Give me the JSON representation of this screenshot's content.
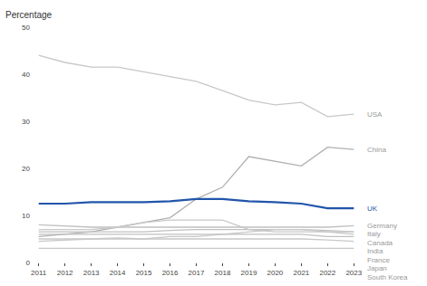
{
  "chart_data": {
    "type": "line",
    "y_label": "Percentage",
    "x": [
      2011,
      2012,
      2013,
      2014,
      2015,
      2016,
      2017,
      2018,
      2019,
      2020,
      2021,
      2022,
      2023
    ],
    "series": [
      {
        "name": "USA",
        "color": "#c8c8c8",
        "values": [
          44.0,
          42.5,
          41.5,
          41.5,
          40.5,
          39.5,
          38.5,
          36.5,
          34.5,
          33.5,
          34.0,
          31.0,
          31.5
        ]
      },
      {
        "name": "China",
        "color": "#b0b0b0",
        "values": [
          5.5,
          6.0,
          6.5,
          7.5,
          8.5,
          9.5,
          13.5,
          16.0,
          22.5,
          21.5,
          20.5,
          24.5,
          24.0
        ]
      },
      {
        "name": "UK",
        "color": "#2255aa",
        "values": [
          12.5,
          12.5,
          12.8,
          12.8,
          12.8,
          13.0,
          13.5,
          13.5,
          13.0,
          12.8,
          12.5,
          11.5,
          11.5
        ]
      },
      {
        "name": "Germany",
        "color": "#c0c0c0",
        "values": [
          8.0,
          7.8,
          7.5,
          7.5,
          7.5,
          7.5,
          7.5,
          7.5,
          7.5,
          7.5,
          7.5,
          7.5,
          7.8
        ]
      },
      {
        "name": "Italy",
        "color": "#c0c0c0",
        "values": [
          6.5,
          6.5,
          6.5,
          6.5,
          6.5,
          6.8,
          7.0,
          7.0,
          7.0,
          7.0,
          7.0,
          6.8,
          6.5
        ]
      },
      {
        "name": "Canada",
        "color": "#c8c8c8",
        "values": [
          7.0,
          7.0,
          7.0,
          7.5,
          8.5,
          9.0,
          9.0,
          9.0,
          7.0,
          6.5,
          6.5,
          6.5,
          6.5
        ]
      },
      {
        "name": "India",
        "color": "#c8c8c8",
        "values": [
          4.5,
          4.8,
          5.0,
          5.2,
          5.0,
          5.5,
          5.5,
          6.0,
          6.5,
          7.0,
          7.0,
          6.5,
          6.0
        ]
      },
      {
        "name": "France",
        "color": "#c0c0c0",
        "values": [
          6.0,
          6.0,
          6.0,
          6.0,
          6.0,
          6.0,
          6.0,
          6.0,
          6.0,
          6.0,
          6.0,
          5.5,
          5.5
        ]
      },
      {
        "name": "Japan",
        "color": "#c8c8c8",
        "values": [
          5.0,
          5.0,
          5.0,
          5.0,
          5.0,
          5.0,
          5.0,
          5.0,
          5.0,
          5.0,
          5.0,
          4.8,
          4.5
        ]
      },
      {
        "name": "South Korea",
        "color": "#c8c8c8",
        "values": [
          3.0,
          3.0,
          3.0,
          3.0,
          3.0,
          3.0,
          3.0,
          3.0,
          3.0,
          3.0,
          3.0,
          3.0,
          3.0
        ]
      }
    ],
    "xlim": [
      2010.7,
      2023.3
    ],
    "xticks": [
      2011,
      2012,
      2013,
      2014,
      2015,
      2016,
      2017,
      2018,
      2019,
      2020,
      2021,
      2022,
      2023
    ],
    "ylim": [
      0,
      50
    ],
    "yticks": [
      0,
      10,
      20,
      30,
      40,
      50
    ],
    "grid": false
  }
}
